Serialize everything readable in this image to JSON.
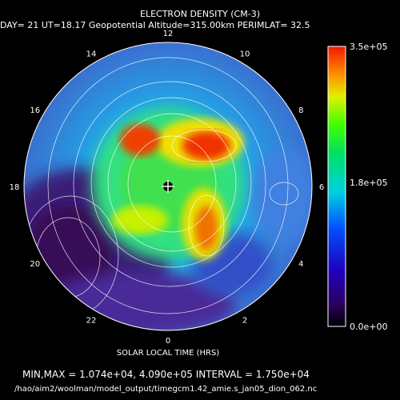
{
  "header": {
    "title": "ELECTRON DENSITY (CM-3)",
    "subtitle": "DAY= 21 UT=18.17 Geopotential Altitude=315.00km PERIMLAT= 32.5"
  },
  "footer": {
    "xlabel": "SOLAR LOCAL TIME (HRS)",
    "stats": "MIN,MAX = 1.074e+04, 4.090e+05 INTERVAL = 1.750e+04",
    "filepath": "/hao/aim2/woolman/model_output/timegcm1.42_amie.s_jan05_dion_062.nc"
  },
  "chart_data": {
    "type": "heatmap",
    "projection": "polar",
    "title": "ELECTRON DENSITY (CM-3)",
    "xlabel": "SOLAR LOCAL TIME (HRS)",
    "hour_labels": [
      "0",
      "2",
      "4",
      "6",
      "8",
      "10",
      "12",
      "14",
      "16",
      "18",
      "20",
      "22"
    ],
    "colorbar": {
      "ticks": [
        "0.0e+00",
        "1.8e+05",
        "3.5e+05"
      ],
      "range": [
        0,
        350000
      ]
    },
    "min": 10740,
    "max": 409000,
    "interval": 17500,
    "colors": {
      "low": "#3a0a50",
      "mid": "#00d0e0",
      "high": "#f01800"
    }
  }
}
